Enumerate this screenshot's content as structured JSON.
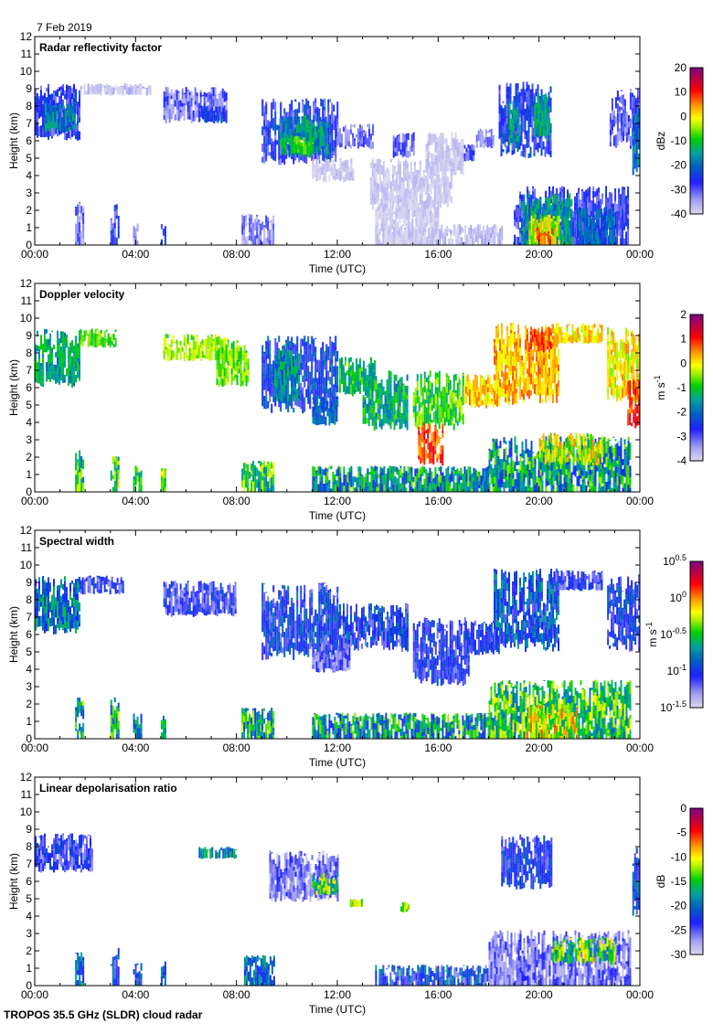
{
  "header": {
    "date": "7 Feb 2019"
  },
  "footer": {
    "caption": "TROPOS 35.5 GHz (SLDR) cloud radar"
  },
  "axes": {
    "ylabel": "Height (km)",
    "xlabel": "Time (UTC)",
    "yticks": [
      "0",
      "1",
      "2",
      "3",
      "4",
      "5",
      "6",
      "7",
      "8",
      "9",
      "10",
      "11",
      "12"
    ],
    "xticks": [
      "00:00",
      "04:00",
      "08:00",
      "12:00",
      "16:00",
      "20:00",
      "00:00"
    ],
    "xlim_hours": [
      0,
      24
    ],
    "ylim_km": [
      0,
      12
    ]
  },
  "chart_data": [
    {
      "type": "heatmap",
      "title": "Radar reflectivity factor",
      "colorbar": {
        "unit": "dBz",
        "unit_sup": "",
        "range": [
          -40,
          20
        ],
        "ticks": [
          {
            "t": "20"
          },
          {
            "t": "10"
          },
          {
            "t": "0"
          },
          {
            "t": "-10"
          },
          {
            "t": "-20"
          },
          {
            "t": "-30"
          },
          {
            "t": "-40"
          }
        ]
      },
      "patches": [
        [
          0,
          1.8,
          6,
          9.3,
          -27,
          6
        ],
        [
          0.4,
          1.6,
          6.5,
          8.2,
          -17,
          5
        ],
        [
          1.8,
          4.6,
          8.6,
          9.3,
          -37,
          3
        ],
        [
          1.6,
          1.9,
          0,
          2.5,
          -32,
          5
        ],
        [
          3,
          3.3,
          0,
          2.4,
          -28,
          6
        ],
        [
          3.9,
          4.1,
          0,
          1.5,
          -34,
          4
        ],
        [
          5,
          5.2,
          0,
          1.4,
          -26,
          6
        ],
        [
          5.1,
          7.6,
          7,
          9.1,
          -31,
          6
        ],
        [
          6.5,
          7.5,
          7,
          8,
          -24,
          4
        ],
        [
          8.2,
          9.5,
          0,
          1.8,
          -33,
          5
        ],
        [
          9,
          12,
          4.6,
          8.5,
          -27,
          6
        ],
        [
          9.7,
          11.6,
          5,
          7.5,
          -15,
          6
        ],
        [
          10.2,
          11,
          5.2,
          6.3,
          -8,
          4
        ],
        [
          11,
          12.6,
          3.6,
          5,
          -38,
          2
        ],
        [
          12,
          13.4,
          5.5,
          7,
          -32,
          4
        ],
        [
          13.3,
          16.5,
          2,
          5,
          -38,
          2
        ],
        [
          14.2,
          15,
          5,
          6.5,
          -30,
          5
        ],
        [
          16.8,
          17.4,
          4.8,
          5.8,
          -30,
          5
        ],
        [
          17.5,
          18.2,
          5.5,
          6.7,
          -33,
          4
        ],
        [
          18.4,
          20.5,
          5,
          9.4,
          -26,
          6
        ],
        [
          18.8,
          19.2,
          5.5,
          8.5,
          -15,
          5
        ],
        [
          19.8,
          20.4,
          6,
          8.8,
          -14,
          5
        ],
        [
          14,
          18.5,
          0,
          1.2,
          -37,
          3
        ],
        [
          13.5,
          16,
          0,
          3,
          -38,
          2
        ],
        [
          19,
          23.5,
          0,
          3.4,
          -28,
          5
        ],
        [
          19.3,
          21.3,
          0,
          3,
          -15,
          6
        ],
        [
          19.6,
          20.8,
          0,
          1.8,
          -2,
          6
        ],
        [
          19.9,
          20.5,
          0,
          1,
          8,
          4
        ],
        [
          21.5,
          23,
          0,
          2.2,
          -20,
          5
        ],
        [
          22.8,
          24,
          5.5,
          9,
          -30,
          5
        ],
        [
          23.7,
          24,
          4,
          8,
          -20,
          6
        ],
        [
          15.5,
          17,
          4,
          6.5,
          -38,
          2
        ]
      ]
    },
    {
      "type": "heatmap",
      "title": "Doppler velocity",
      "colorbar": {
        "unit": "m s",
        "unit_sup": "-1",
        "range": [
          -4,
          2
        ],
        "ticks": [
          {
            "t": "2"
          },
          {
            "t": "1"
          },
          {
            "t": "0"
          },
          {
            "t": "-1"
          },
          {
            "t": "-2"
          },
          {
            "t": "-3"
          },
          {
            "t": "-4"
          }
        ]
      },
      "patches": [
        [
          0,
          1.8,
          6,
          9.4,
          -1.4,
          0.6
        ],
        [
          1.8,
          3.2,
          8.3,
          9.4,
          -0.7,
          0.4
        ],
        [
          1.6,
          1.9,
          0,
          2.5,
          -1,
          1
        ],
        [
          3,
          3.3,
          0,
          2.4,
          -0.8,
          1
        ],
        [
          3.9,
          4.2,
          0,
          1.5,
          -1.2,
          0.8
        ],
        [
          5,
          5.2,
          0,
          1.4,
          -0.6,
          0.8
        ],
        [
          5.1,
          7.6,
          7.5,
          9.1,
          -0.4,
          0.4
        ],
        [
          7.2,
          8.5,
          6,
          8.8,
          -0.6,
          0.5
        ],
        [
          8.2,
          9.5,
          0,
          1.8,
          -1,
          1
        ],
        [
          9,
          12,
          4.5,
          9,
          -2.4,
          0.7
        ],
        [
          9.5,
          10.5,
          5,
          8.5,
          -1.6,
          0.6
        ],
        [
          11,
          12,
          3.8,
          5.5,
          -2,
          0.5
        ],
        [
          12,
          13.5,
          5.5,
          7.8,
          -1.1,
          0.6
        ],
        [
          13,
          14.8,
          3.5,
          7,
          -1.3,
          0.7
        ],
        [
          15,
          17,
          3.5,
          7,
          -0.8,
          0.6
        ],
        [
          15.2,
          16.2,
          1.5,
          4,
          0.9,
          0.6
        ],
        [
          17,
          18.4,
          4.8,
          6.8,
          0.2,
          0.5
        ],
        [
          18.2,
          20.8,
          5,
          9.8,
          0.3,
          0.5
        ],
        [
          19.5,
          20.5,
          8,
          9.5,
          0.8,
          0.4
        ],
        [
          20.5,
          22.5,
          8.5,
          9.7,
          0.1,
          0.5
        ],
        [
          11,
          18,
          0,
          1.5,
          -1.5,
          1.1
        ],
        [
          18,
          23.6,
          0,
          3.2,
          -1.6,
          1.2
        ],
        [
          20,
          22.5,
          1.5,
          3.4,
          -0.2,
          0.8
        ],
        [
          22.7,
          24,
          5,
          9.5,
          0,
          0.6
        ],
        [
          23.5,
          24,
          3.5,
          6.5,
          1,
          0.5
        ]
      ]
    },
    {
      "type": "heatmap",
      "title": "Spectral width",
      "colorbar": {
        "unit": "m s",
        "unit_sup": "-1",
        "range": [
          -1.5,
          0.5
        ],
        "log_base": 10,
        "ticks": [
          {
            "t": "10",
            "sup": "0.5"
          },
          {
            "t": "10",
            "sup": "0"
          },
          {
            "t": "10",
            "sup": "-0.5"
          },
          {
            "t": "10",
            "sup": "-1"
          },
          {
            "t": "10",
            "sup": "-1.5"
          }
        ]
      },
      "patches": [
        [
          0,
          1.8,
          6,
          9.4,
          -0.8,
          0.3
        ],
        [
          1.8,
          3.5,
          8.3,
          9.4,
          -1.1,
          0.2
        ],
        [
          1.6,
          1.9,
          0,
          2.5,
          -0.6,
          0.4
        ],
        [
          3,
          3.3,
          0,
          2.4,
          -0.6,
          0.4
        ],
        [
          3.9,
          4.2,
          0,
          1.5,
          -0.7,
          0.3
        ],
        [
          5,
          5.2,
          0,
          1.4,
          -0.7,
          0.3
        ],
        [
          5.1,
          8,
          7,
          9.1,
          -1.1,
          0.2
        ],
        [
          8.2,
          9.5,
          0,
          1.8,
          -0.6,
          0.4
        ],
        [
          9,
          12,
          4.5,
          9,
          -1.0,
          0.25
        ],
        [
          11,
          12.5,
          3.8,
          5.5,
          -1.2,
          0.2
        ],
        [
          12,
          14.8,
          5,
          7.8,
          -1.0,
          0.25
        ],
        [
          15,
          17.2,
          3,
          7,
          -1.05,
          0.2
        ],
        [
          17,
          18.4,
          4.8,
          6.8,
          -1.0,
          0.2
        ],
        [
          18.2,
          20.8,
          5,
          9.8,
          -0.9,
          0.3
        ],
        [
          20.5,
          22.5,
          8.5,
          9.7,
          -1.1,
          0.2
        ],
        [
          11,
          18,
          0,
          1.5,
          -0.7,
          0.4
        ],
        [
          18,
          23.6,
          0,
          3.4,
          -0.5,
          0.35
        ],
        [
          19.5,
          21.5,
          0,
          2,
          -0.2,
          0.3
        ],
        [
          22.7,
          24,
          5,
          9.5,
          -1.0,
          0.2
        ]
      ]
    },
    {
      "type": "heatmap",
      "title": "Linear depolarisation ratio",
      "colorbar": {
        "unit": "dB",
        "unit_sup": "",
        "range": [
          -30,
          0
        ],
        "ticks": [
          {
            "t": "0"
          },
          {
            "t": "-5"
          },
          {
            "t": "-10"
          },
          {
            "t": "-15"
          },
          {
            "t": "-20"
          },
          {
            "t": "-25"
          },
          {
            "t": "-30"
          }
        ]
      },
      "patches": [
        [
          0,
          2.3,
          6.5,
          8.8,
          -24,
          3
        ],
        [
          1.6,
          1.9,
          0,
          2,
          -20,
          4
        ],
        [
          3,
          3.3,
          0,
          2.2,
          -22,
          4
        ],
        [
          3.9,
          4.2,
          0,
          1.3,
          -22,
          4
        ],
        [
          5,
          5.2,
          0,
          1.4,
          -21,
          4
        ],
        [
          6.5,
          8,
          7.3,
          8,
          -18,
          3
        ],
        [
          8.3,
          9.5,
          0,
          1.8,
          -20,
          4
        ],
        [
          9.3,
          12,
          4.8,
          7.8,
          -26,
          3
        ],
        [
          11,
          12,
          5.2,
          6.5,
          -14,
          5
        ],
        [
          12.5,
          13,
          4.5,
          5,
          -12,
          3
        ],
        [
          14.5,
          14.8,
          4.2,
          4.8,
          -12,
          3
        ],
        [
          13.5,
          18,
          0,
          1.2,
          -22,
          5
        ],
        [
          18.5,
          20.5,
          5.5,
          8.7,
          -23,
          3
        ],
        [
          18,
          23.6,
          0,
          3.2,
          -26,
          3
        ],
        [
          20.5,
          23,
          1.2,
          2.8,
          -14,
          6
        ],
        [
          23.7,
          24,
          4,
          8,
          -22,
          3
        ]
      ]
    }
  ]
}
